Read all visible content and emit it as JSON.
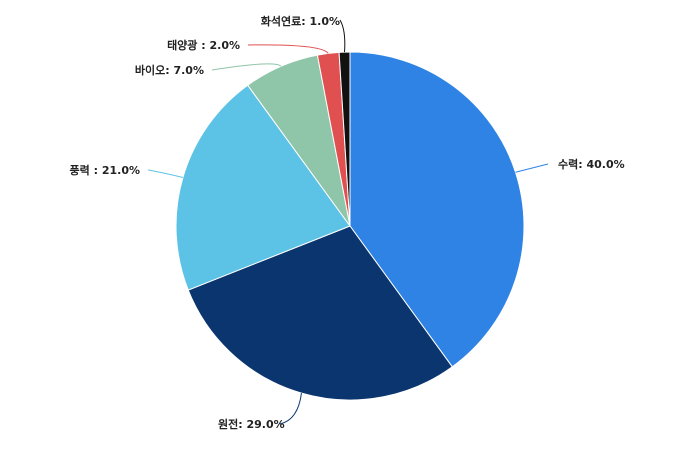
{
  "chart_data": {
    "type": "pie",
    "title": "",
    "slices": [
      {
        "label": "수력",
        "display": "수력: 40.0%",
        "value": 40.0,
        "color": "#2f83e4"
      },
      {
        "label": "원전",
        "display": "원전: 29.0%",
        "value": 29.0,
        "color": "#0a356e"
      },
      {
        "label": "풍력",
        "display": "풍력 : 21.0%",
        "value": 21.0,
        "color": "#5cc3e6"
      },
      {
        "label": "바이오",
        "display": "바이오: 7.0%",
        "value": 7.0,
        "color": "#8fc5a8"
      },
      {
        "label": "태양광",
        "display": "태양광 : 2.0%",
        "value": 2.0,
        "color": "#e05050"
      },
      {
        "label": "화석연료",
        "display": "화석연료: 1.0%",
        "value": 1.0,
        "color": "#111111"
      }
    ],
    "legend": "none"
  }
}
